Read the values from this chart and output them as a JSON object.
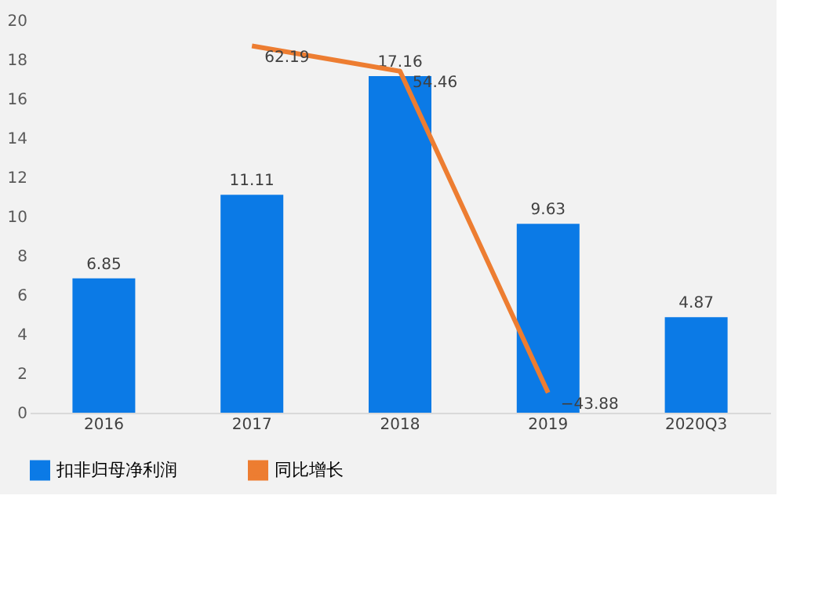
{
  "chart_data": {
    "type": "bar",
    "categories": [
      "2016",
      "2017",
      "2018",
      "2019",
      "2020Q3"
    ],
    "series": [
      {
        "name": "扣非归母净利润",
        "color": "#0b7ae6",
        "values": [
          6.85,
          11.11,
          17.16,
          9.63,
          4.87
        ]
      },
      {
        "name": "同比增长",
        "type": "line",
        "color": "#ed7d31",
        "axis": "y2",
        "values": [
          null,
          62.19,
          54.46,
          -43.88,
          null
        ]
      }
    ],
    "ylim": [
      0,
      20
    ],
    "yticks": [
      0,
      2,
      4,
      6,
      8,
      10,
      12,
      14,
      16,
      18,
      20
    ],
    "data_labels": true,
    "grid": false,
    "legend": "bottom"
  }
}
